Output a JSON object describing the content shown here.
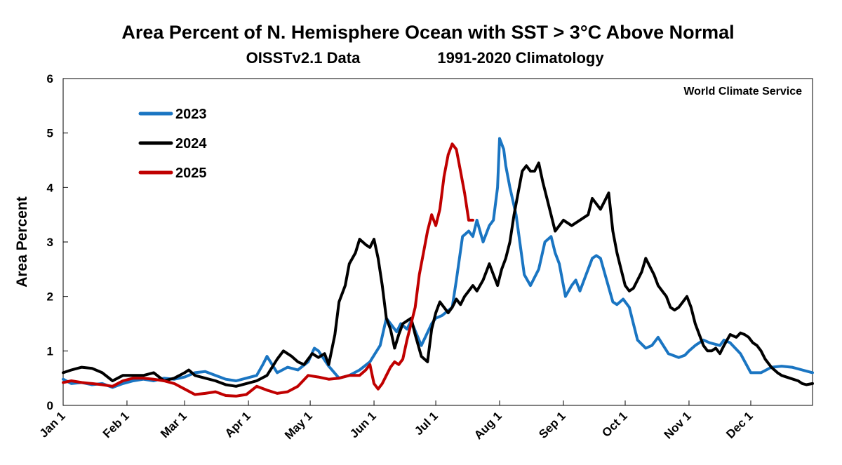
{
  "chart_data": {
    "type": "line",
    "title": "Area Percent of N. Hemisphere Ocean with SST > 3°C Above Normal",
    "subtitle_left": "OISSTv2.1 Data",
    "subtitle_right": "1991-2020 Climatology",
    "watermark": "World Climate Service",
    "ylabel": "Area Percent",
    "xlabel": "",
    "ylim": [
      0,
      6
    ],
    "yticks": [
      "0",
      "1",
      "2",
      "3",
      "4",
      "5",
      "6"
    ],
    "xlim": [
      1,
      365
    ],
    "xticks": [
      {
        "label": "Jan 1",
        "day": 1
      },
      {
        "label": "Feb 1",
        "day": 32
      },
      {
        "label": "Mar 1",
        "day": 60
      },
      {
        "label": "Apr 1",
        "day": 91
      },
      {
        "label": "May 1",
        "day": 121
      },
      {
        "label": "Jun 1",
        "day": 152
      },
      {
        "label": "Jul 1",
        "day": 182
      },
      {
        "label": "Aug 1",
        "day": 213
      },
      {
        "label": "Sep 1",
        "day": 244
      },
      {
        "label": "Oct 1",
        "day": 274
      },
      {
        "label": "Nov 1",
        "day": 305
      },
      {
        "label": "Dec 1",
        "day": 335
      }
    ],
    "grid": false,
    "legend_position": "top-left",
    "series": [
      {
        "name": "2023",
        "color": "#1a75c2",
        "x": [
          1,
          5,
          10,
          15,
          20,
          25,
          30,
          35,
          40,
          45,
          50,
          55,
          60,
          65,
          70,
          75,
          80,
          85,
          90,
          95,
          98,
          100,
          105,
          110,
          115,
          120,
          123,
          125,
          130,
          135,
          140,
          145,
          150,
          155,
          158,
          160,
          163,
          165,
          168,
          170,
          175,
          180,
          182,
          185,
          190,
          192,
          195,
          198,
          200,
          202,
          205,
          208,
          210,
          212,
          213,
          215,
          216,
          218,
          221,
          225,
          228,
          232,
          235,
          238,
          240,
          242,
          245,
          248,
          250,
          252,
          255,
          258,
          260,
          262,
          265,
          268,
          270,
          273,
          276,
          278,
          280,
          284,
          287,
          290,
          295,
          300,
          303,
          305,
          308,
          312,
          315,
          320,
          322,
          325,
          330,
          335,
          340,
          345,
          350,
          355,
          360,
          365
        ],
        "y": [
          0.48,
          0.4,
          0.42,
          0.38,
          0.4,
          0.33,
          0.4,
          0.45,
          0.48,
          0.45,
          0.5,
          0.48,
          0.52,
          0.6,
          0.62,
          0.55,
          0.48,
          0.45,
          0.5,
          0.55,
          0.75,
          0.9,
          0.6,
          0.7,
          0.65,
          0.8,
          1.05,
          1.0,
          0.72,
          0.5,
          0.55,
          0.65,
          0.8,
          1.1,
          1.6,
          1.5,
          1.35,
          1.5,
          1.4,
          1.55,
          1.1,
          1.5,
          1.6,
          1.65,
          1.8,
          2.3,
          3.1,
          3.2,
          3.1,
          3.4,
          3.0,
          3.3,
          3.4,
          4.0,
          4.9,
          4.7,
          4.4,
          4.0,
          3.5,
          2.4,
          2.2,
          2.5,
          3.0,
          3.1,
          2.8,
          2.6,
          2.0,
          2.2,
          2.3,
          2.1,
          2.4,
          2.7,
          2.75,
          2.7,
          2.3,
          1.9,
          1.85,
          1.95,
          1.8,
          1.5,
          1.2,
          1.05,
          1.1,
          1.25,
          0.95,
          0.88,
          0.92,
          1.0,
          1.1,
          1.2,
          1.15,
          1.1,
          1.2,
          1.15,
          0.95,
          0.6,
          0.6,
          0.7,
          0.72,
          0.7,
          0.65,
          0.6
        ]
      },
      {
        "name": "2024",
        "color": "#000000",
        "x": [
          1,
          5,
          10,
          15,
          20,
          25,
          30,
          35,
          40,
          45,
          50,
          55,
          60,
          62,
          65,
          70,
          75,
          80,
          85,
          90,
          95,
          100,
          105,
          108,
          112,
          115,
          118,
          120,
          122,
          125,
          128,
          130,
          133,
          135,
          138,
          140,
          143,
          145,
          148,
          150,
          152,
          154,
          156,
          158,
          160,
          162,
          164,
          166,
          168,
          170,
          172,
          175,
          178,
          180,
          182,
          184,
          186,
          188,
          190,
          192,
          194,
          196,
          198,
          200,
          202,
          205,
          208,
          210,
          212,
          214,
          216,
          218,
          220,
          222,
          224,
          226,
          228,
          230,
          232,
          234,
          236,
          240,
          244,
          248,
          252,
          256,
          258,
          260,
          262,
          264,
          266,
          268,
          270,
          272,
          274,
          276,
          278,
          280,
          282,
          284,
          286,
          288,
          290,
          292,
          294,
          296,
          298,
          300,
          302,
          304,
          306,
          308,
          310,
          312,
          314,
          316,
          318,
          320,
          322,
          325,
          328,
          330,
          332,
          334,
          336,
          338,
          340,
          342,
          345,
          348,
          350,
          354,
          358,
          360,
          362,
          365
        ],
        "y": [
          0.6,
          0.65,
          0.7,
          0.68,
          0.6,
          0.45,
          0.55,
          0.55,
          0.55,
          0.6,
          0.45,
          0.5,
          0.6,
          0.65,
          0.55,
          0.5,
          0.45,
          0.38,
          0.35,
          0.4,
          0.45,
          0.55,
          0.85,
          1.0,
          0.9,
          0.8,
          0.75,
          0.85,
          0.95,
          0.88,
          0.95,
          0.75,
          1.3,
          1.9,
          2.2,
          2.6,
          2.8,
          3.05,
          2.95,
          2.9,
          3.05,
          2.7,
          2.2,
          1.6,
          1.4,
          1.05,
          1.3,
          1.5,
          1.55,
          1.6,
          1.3,
          0.9,
          0.8,
          1.4,
          1.7,
          1.9,
          1.8,
          1.7,
          1.8,
          1.95,
          1.85,
          2.0,
          2.1,
          2.2,
          2.1,
          2.3,
          2.6,
          2.4,
          2.2,
          2.5,
          2.7,
          3.0,
          3.5,
          3.9,
          4.3,
          4.4,
          4.3,
          4.3,
          4.45,
          4.1,
          3.8,
          3.2,
          3.4,
          3.3,
          3.4,
          3.5,
          3.8,
          3.7,
          3.6,
          3.75,
          3.9,
          3.2,
          2.8,
          2.5,
          2.2,
          2.1,
          2.15,
          2.3,
          2.45,
          2.7,
          2.55,
          2.4,
          2.2,
          2.1,
          2.0,
          1.8,
          1.75,
          1.8,
          1.9,
          2.0,
          1.8,
          1.5,
          1.3,
          1.1,
          1.0,
          1.0,
          1.05,
          0.95,
          1.1,
          1.3,
          1.25,
          1.33,
          1.3,
          1.25,
          1.15,
          1.1,
          1.0,
          0.85,
          0.7,
          0.6,
          0.55,
          0.5,
          0.45,
          0.4,
          0.38,
          0.4
        ]
      },
      {
        "name": "2025",
        "color": "#c00000",
        "x": [
          1,
          5,
          10,
          15,
          20,
          25,
          30,
          35,
          40,
          45,
          50,
          55,
          60,
          65,
          70,
          75,
          80,
          85,
          90,
          95,
          100,
          105,
          110,
          115,
          120,
          125,
          130,
          135,
          140,
          145,
          148,
          150,
          152,
          154,
          156,
          158,
          160,
          162,
          164,
          166,
          168,
          170,
          172,
          174,
          176,
          178,
          180,
          182,
          184,
          186,
          188,
          190,
          192,
          194,
          196,
          198,
          200
        ],
        "y": [
          0.42,
          0.45,
          0.42,
          0.4,
          0.38,
          0.35,
          0.45,
          0.5,
          0.5,
          0.48,
          0.45,
          0.4,
          0.3,
          0.2,
          0.22,
          0.25,
          0.18,
          0.17,
          0.2,
          0.35,
          0.28,
          0.22,
          0.25,
          0.35,
          0.55,
          0.52,
          0.48,
          0.5,
          0.55,
          0.55,
          0.65,
          0.75,
          0.4,
          0.3,
          0.4,
          0.55,
          0.7,
          0.8,
          0.75,
          0.85,
          1.2,
          1.5,
          1.8,
          2.4,
          2.8,
          3.2,
          3.5,
          3.3,
          3.6,
          4.2,
          4.6,
          4.8,
          4.7,
          4.3,
          3.9,
          3.4,
          3.4
        ]
      }
    ]
  }
}
